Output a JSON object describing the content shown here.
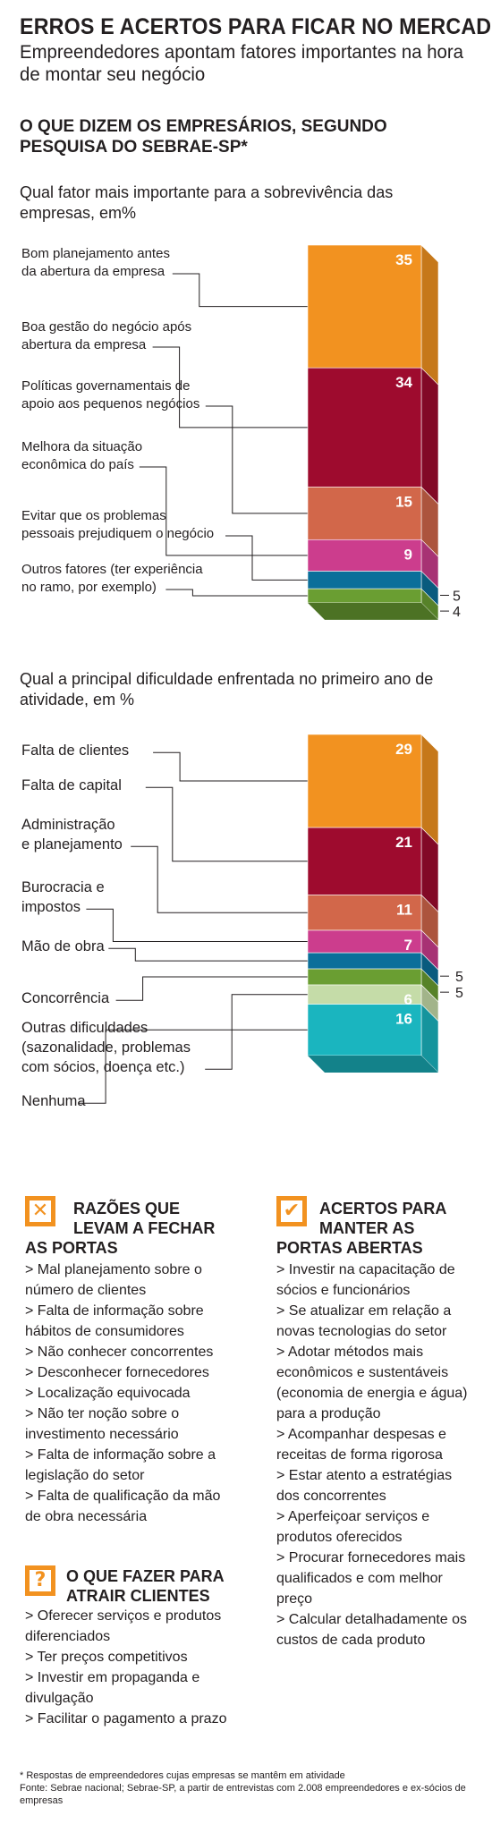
{
  "header": {
    "title": "ERROS E ACERTOS PARA FICAR NO MERCADO",
    "subtitle": "Empreendedores apontam fatores importantes na hora de montar seu negócio",
    "section": "O QUE DIZEM OS EMPRESÁRIOS, SEGUNDO PESQUISA DO SEBRAE-SP*"
  },
  "chart_data": [
    {
      "type": "bar",
      "stacked": true,
      "orientation": "vertical",
      "title": "Qual fator mais importante para a sobrevivência das empresas, em%",
      "categories": [
        "Bom planejamento antes da abertura da empresa",
        "Boa gestão do negócio após abertura da empresa",
        "Políticas governamentais de apoio aos pequenos negócios",
        "Melhora da situação econômica do país",
        "Evitar que os problemas pessoais prejudiquem o negócio",
        "Outros fatores (ter experiência no ramo, por exemplo)"
      ],
      "label_lines": [
        [
          "Bom planejamento antes",
          "da abertura da empresa"
        ],
        [
          "Boa gestão do negócio após",
          "abertura da empresa"
        ],
        [
          "Políticas governamentais de",
          "apoio aos pequenos negócios"
        ],
        [
          "Melhora da situação",
          "econômica do país"
        ],
        [
          "Evitar que os problemas",
          "pessoais prejudiquem o negócio"
        ],
        [
          "Outros fatores (ter experiência",
          "no ramo, por exemplo)"
        ]
      ],
      "segments": [
        35,
        34,
        15,
        9,
        5,
        4
      ],
      "value_labels": [
        "35",
        "34",
        "15",
        "9",
        "5",
        "4"
      ],
      "colors": [
        "#f29220",
        "#9e0b2e",
        "#d2674a",
        "#cc3d8d",
        "#0b6f9a",
        "#6a9e32"
      ]
    },
    {
      "type": "bar",
      "stacked": true,
      "orientation": "vertical",
      "title": "Qual a principal dificuldade enfrentada no primeiro ano de atividade, em %",
      "categories": [
        "Falta de clientes",
        "Falta de capital",
        "Administração e planejamento",
        "Burocracia e impostos",
        "Mão de obra",
        "Concorrência",
        "Outras dificuldades (sazonalidade, problemas com sócios, doença etc.)",
        "Nenhuma"
      ],
      "label_lines": [
        [
          "Falta de clientes"
        ],
        [
          "Falta de capital"
        ],
        [
          "Administração",
          "e planejamento"
        ],
        [
          "Burocracia e",
          "impostos"
        ],
        [
          "Mão de obra"
        ],
        [
          "Concorrência"
        ],
        [
          "Outras dificuldades",
          "(sazonalidade, problemas",
          "com sócios, doença etc.)"
        ],
        [
          "Nenhuma"
        ]
      ],
      "segments": [
        29,
        21,
        11,
        7,
        5,
        5,
        6,
        16
      ],
      "value_labels": [
        "29",
        "21",
        "11",
        "7",
        "5",
        "5",
        "6",
        "16"
      ],
      "colors": [
        "#f29220",
        "#9e0b2e",
        "#d2674a",
        "#cc3d8d",
        "#0b6f9a",
        "#6a9e32",
        "#c5dca8",
        "#1ab5bf"
      ]
    }
  ],
  "boxes": {
    "reasons_close": {
      "title": "RAZÕES QUE LEVAM A FECHAR AS PORTAS",
      "title_lines": [
        "RAZÕES QUE",
        "LEVAM A FECHAR",
        "AS PORTAS"
      ],
      "icon": "x-icon",
      "items": [
        "> Mal planejamento sobre o número de clientes",
        "> Falta de informação sobre hábitos de consumidores",
        "> Não conhecer concorrentes",
        "> Desconhecer fornecedores",
        "> Localização equivocada",
        "> Não ter noção sobre o investimento necessário",
        "> Falta de informação sobre a legislação do setor",
        "> Falta de qualificação da mão de obra necessária"
      ]
    },
    "attract_clients": {
      "title": "O QUE FAZER PARA ATRAIR CLIENTES",
      "title_lines": [
        "O QUE FAZER PARA",
        "ATRAIR  CLIENTES"
      ],
      "icon": "question-icon",
      "items": [
        "> Oferecer serviços e produtos diferenciados",
        "> Ter preços competitivos",
        "> Investir em propaganda e divulgação",
        "> Facilitar o pagamento a prazo"
      ]
    },
    "keep_open": {
      "title": "ACERTOS PARA MANTER AS PORTAS ABERTAS",
      "title_lines": [
        "ACERTOS PARA",
        "MANTER AS",
        "PORTAS ABERTAS"
      ],
      "icon": "checkmark-icon",
      "items": [
        "> Investir na capacitação de sócios e funcionários",
        "> Se atualizar em relação a novas tecnologias do setor",
        "> Adotar métodos mais econômicos e sustentáveis (economia de energia e água) para a produção",
        "> Acompanhar despesas e receitas de forma rigorosa",
        "> Estar atento a estratégias dos concorrentes",
        "> Aperfeiçoar serviços e produtos oferecidos",
        "> Procurar fornecedores mais qualificados e com melhor preço",
        "> Calcular detalhadamente os custos de cada produto"
      ]
    }
  },
  "footnote": [
    "* Respostas de empreendedores cujas empresas se mantêm em atividade",
    "Fonte: Sebrae nacional; Sebrae-SP, a partir de entrevistas com 2.008 empreendedores e ex-sócios de empresas"
  ]
}
